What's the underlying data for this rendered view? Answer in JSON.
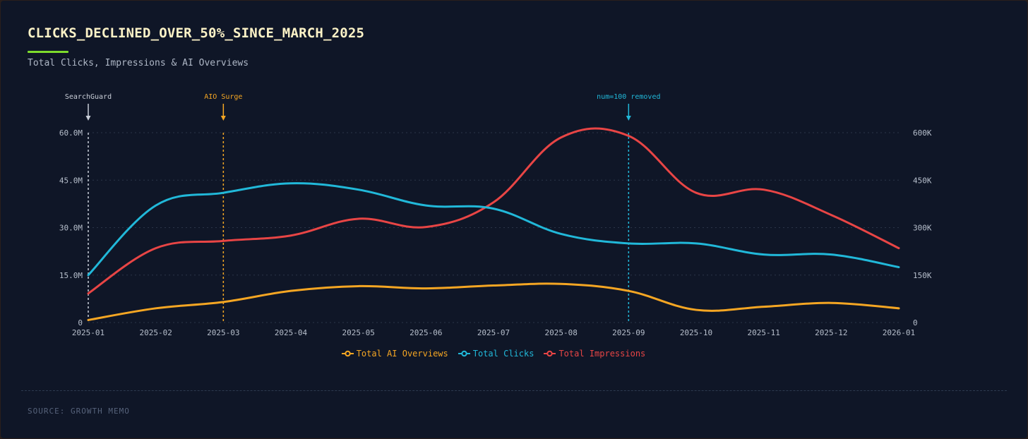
{
  "title": "CLICKS_DECLINED_OVER_50%_SINCE_MARCH_2025",
  "subtitle": "Total Clicks, Impressions & AI Overviews",
  "source": "SOURCE: GROWTH MEMO",
  "colors": {
    "ai_overviews": "#f5a623",
    "clicks": "#21b8d9",
    "impressions": "#e84545",
    "searchguard": "#c9ced8",
    "accent": "#7ddc2c"
  },
  "chart_data": {
    "type": "line",
    "x": [
      "2025-01",
      "2025-02",
      "2025-03",
      "2025-04",
      "2025-05",
      "2025-06",
      "2025-07",
      "2025-08",
      "2025-09",
      "2025-10",
      "2025-11",
      "2025-12",
      "2026-01"
    ],
    "y_left_ticks": [
      "0",
      "15.0M",
      "30.0M",
      "45.0M",
      "60.0M"
    ],
    "y_right_ticks": [
      "0",
      "150K",
      "300K",
      "450K",
      "600K"
    ],
    "ylim_left": [
      0,
      60000000
    ],
    "ylim_right": [
      0,
      600000
    ],
    "grid": "horizontal dotted",
    "legend_position": "bottom-center",
    "series": [
      {
        "name": "Total AI Overviews",
        "axis": "right",
        "color": "#f5a623",
        "values": [
          8000,
          45000,
          65000,
          100000,
          115000,
          108000,
          117000,
          122000,
          100000,
          40000,
          50000,
          62000,
          45000
        ]
      },
      {
        "name": "Total Clicks",
        "axis": "left",
        "color": "#21b8d9",
        "values": [
          15000000,
          37000000,
          41000000,
          44000000,
          42000000,
          37000000,
          36000000,
          28000000,
          25000000,
          25000000,
          21500000,
          21500000,
          17500000
        ]
      },
      {
        "name": "Total Impressions",
        "axis": "right",
        "color": "#e84545",
        "values": [
          92000,
          235000,
          258000,
          275000,
          328000,
          302000,
          380000,
          585000,
          590000,
          410000,
          420000,
          340000,
          235000
        ]
      }
    ],
    "annotations": [
      {
        "label": "SearchGuard",
        "x": "2025-01",
        "color": "#c9ced8"
      },
      {
        "label": "AIO Surge",
        "x": "2025-03",
        "color": "#f5a623"
      },
      {
        "label": "num=100 removed",
        "x": "2025-09",
        "color": "#21b8d9"
      }
    ]
  }
}
